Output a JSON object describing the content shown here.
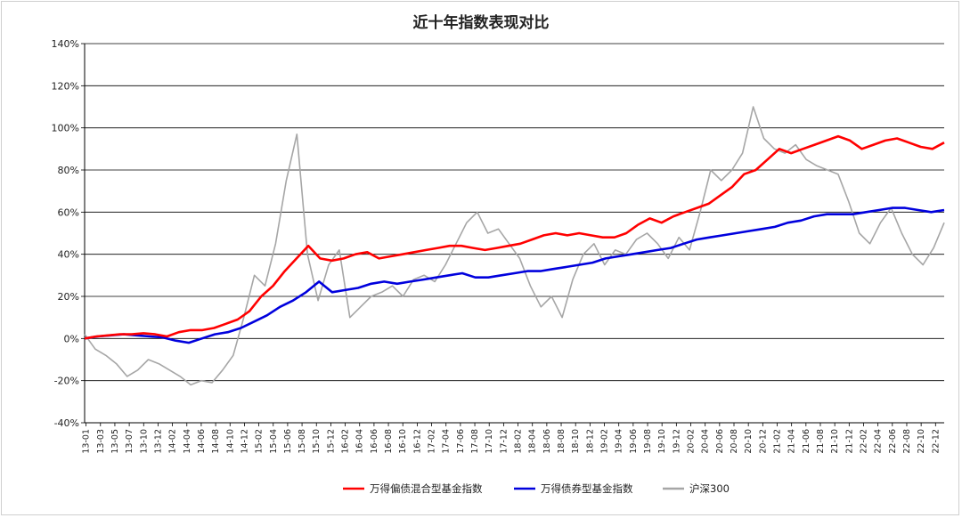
{
  "chart_data": {
    "type": "line",
    "title": "近十年指数表现对比",
    "ylim": [
      -40,
      140
    ],
    "yticks": [
      -40,
      -20,
      0,
      20,
      40,
      60,
      80,
      100,
      120,
      140
    ],
    "ytick_labels": [
      "-40%",
      "-20%",
      "0%",
      "20%",
      "40%",
      "60%",
      "80%",
      "100%",
      "120%",
      "140%"
    ],
    "x_tick_labels": [
      "13-01",
      "13-03",
      "13-05",
      "13-07",
      "13-10",
      "13-12",
      "14-02",
      "14-04",
      "14-06",
      "14-08",
      "14-10",
      "14-12",
      "15-02",
      "15-04",
      "15-06",
      "15-08",
      "15-10",
      "15-12",
      "16-02",
      "16-04",
      "16-06",
      "16-08",
      "16-10",
      "16-12",
      "17-02",
      "17-04",
      "17-06",
      "17-08",
      "17-10",
      "17-12",
      "18-02",
      "18-04",
      "18-06",
      "18-08",
      "18-10",
      "18-12",
      "19-02",
      "19-04",
      "19-06",
      "19-08",
      "19-10",
      "19-12",
      "20-02",
      "20-04",
      "20-06",
      "20-08",
      "20-10",
      "20-12",
      "21-02",
      "21-04",
      "21-06",
      "21-08",
      "21-10",
      "21-12",
      "22-02",
      "22-04",
      "22-06",
      "22-08",
      "22-10",
      "22-12"
    ],
    "grid": "horizontal",
    "legend_position": "bottom",
    "series": [
      {
        "name": "万得偏债混合型基金指数",
        "color": "#ff0000",
        "values": [
          0,
          1,
          1.5,
          2,
          2,
          2.5,
          2,
          1,
          3,
          4,
          4,
          5,
          7,
          9,
          13,
          20,
          25,
          32,
          38,
          44,
          38,
          37,
          38,
          40,
          41,
          38,
          39,
          40,
          41,
          42,
          43,
          44,
          44,
          43,
          42,
          43,
          44,
          45,
          47,
          49,
          50,
          49,
          50,
          49,
          48,
          48,
          50,
          54,
          57,
          55,
          58,
          60,
          62,
          64,
          68,
          72,
          78,
          80,
          85,
          90,
          88,
          90,
          92,
          94,
          96,
          94,
          90,
          92,
          94,
          95,
          93,
          91,
          90,
          93
        ]
      },
      {
        "name": "万得债券型基金指数",
        "color": "#0000dd",
        "values": [
          0,
          1,
          1.5,
          2,
          1.5,
          1,
          0.5,
          -1,
          -2,
          0,
          2,
          3,
          5,
          8,
          11,
          15,
          18,
          22,
          27,
          22,
          23,
          24,
          26,
          27,
          26,
          27,
          28,
          29,
          30,
          31,
          29,
          29,
          30,
          31,
          32,
          32,
          33,
          34,
          35,
          36,
          38,
          39,
          40,
          41,
          42,
          43,
          45,
          47,
          48,
          49,
          50,
          51,
          52,
          53,
          55,
          56,
          58,
          59,
          59,
          59,
          60,
          61,
          62,
          62,
          61,
          60,
          61
        ]
      },
      {
        "name": "沪深300",
        "color": "#a6a6a6",
        "values": [
          2,
          -5,
          -8,
          -12,
          -18,
          -15,
          -10,
          -12,
          -15,
          -18,
          -22,
          -20,
          -21,
          -15,
          -8,
          10,
          30,
          25,
          45,
          75,
          97,
          40,
          18,
          35,
          42,
          10,
          15,
          20,
          22,
          25,
          20,
          28,
          30,
          27,
          35,
          45,
          55,
          60,
          50,
          52,
          45,
          38,
          25,
          15,
          20,
          10,
          28,
          40,
          45,
          35,
          42,
          40,
          47,
          50,
          45,
          38,
          48,
          42,
          60,
          80,
          75,
          80,
          88,
          110,
          95,
          90,
          88,
          92,
          85,
          82,
          80,
          78,
          65,
          50,
          45,
          55,
          62,
          50,
          40,
          35,
          43,
          55
        ]
      }
    ]
  }
}
